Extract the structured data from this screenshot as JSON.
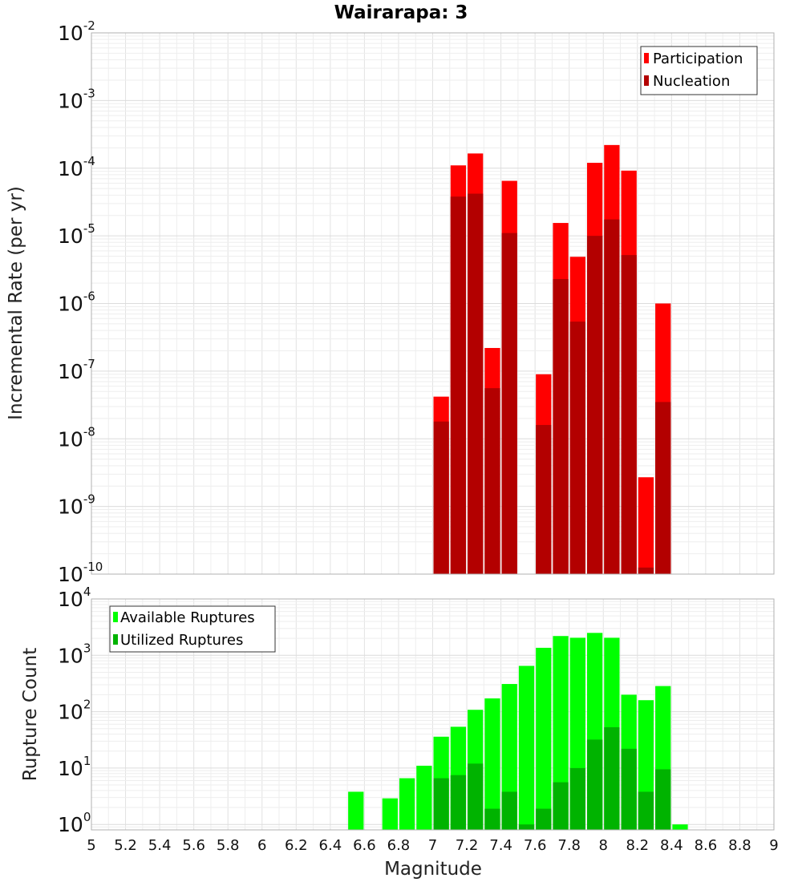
{
  "chart_data": [
    {
      "type": "bar",
      "title": "Wairarapa: 3",
      "xlabel": "",
      "ylabel": "Incremental Rate (per yr)",
      "xlim": [
        5,
        9
      ],
      "ylim": [
        1e-10,
        0.01
      ],
      "log_y": true,
      "bar_width": 0.1,
      "x": [
        7.05,
        7.15,
        7.25,
        7.35,
        7.45,
        7.65,
        7.75,
        7.85,
        7.95,
        8.05,
        8.15,
        8.25,
        8.35
      ],
      "legend": {
        "placement": "top-right"
      },
      "grid": true,
      "series": [
        {
          "name": "Participation",
          "color": "#ff0000",
          "values": [
            4.2e-08,
            0.00011,
            0.000165,
            2.2e-07,
            6.5e-05,
            9e-08,
            1.55e-05,
            4.9e-06,
            0.00012,
            0.00022,
            9.2e-05,
            2.7e-09,
            1e-06
          ]
        },
        {
          "name": "Nucleation",
          "color": "#b30000",
          "values": [
            1.8e-08,
            3.8e-05,
            4.2e-05,
            5.6e-08,
            1.1e-05,
            1.6e-08,
            2.3e-06,
            5.4e-07,
            1e-05,
            1.75e-05,
            5.2e-06,
            1.25e-10,
            3.5e-08
          ]
        }
      ]
    },
    {
      "type": "bar",
      "title": "",
      "xlabel": "Magnitude",
      "ylabel": "Rupture Count",
      "xlim": [
        5,
        9
      ],
      "ylim": [
        0.8,
        10000
      ],
      "log_y": true,
      "bar_width": 0.1,
      "x": [
        6.55,
        6.75,
        6.85,
        6.95,
        7.05,
        7.15,
        7.25,
        7.35,
        7.45,
        7.55,
        7.65,
        7.75,
        7.85,
        7.95,
        8.05,
        8.15,
        8.25,
        8.35,
        8.45
      ],
      "legend": {
        "placement": "top-left"
      },
      "grid": true,
      "series": [
        {
          "name": "Available Ruptures",
          "color": "#00ff00",
          "values": [
            3.8,
            2.9,
            6.6,
            11,
            36,
            54,
            108,
            172,
            310,
            650,
            1360,
            2200,
            2050,
            2500,
            2050,
            200,
            160,
            285,
            1
          ]
        },
        {
          "name": "Utilized Ruptures",
          "color": "#00b300",
          "values": [
            0,
            0,
            0,
            0,
            6.6,
            7.5,
            12,
            1.9,
            3.8,
            1,
            1.9,
            5.6,
            10,
            32,
            53,
            22,
            3.8,
            9.5,
            0
          ]
        }
      ]
    }
  ],
  "x_ticks": [
    "5",
    "5.2",
    "5.4",
    "5.6",
    "5.8",
    "6",
    "6.2",
    "6.4",
    "6.6",
    "6.8",
    "7",
    "7.2",
    "7.4",
    "7.6",
    "7.8",
    "8",
    "8.2",
    "8.4",
    "8.6",
    "8.8",
    "9"
  ],
  "y_ticks_top": [
    {
      "base": "10",
      "exp": "-10"
    },
    {
      "base": "10",
      "exp": "-9"
    },
    {
      "base": "10",
      "exp": "-8"
    },
    {
      "base": "10",
      "exp": "-7"
    },
    {
      "base": "10",
      "exp": "-6"
    },
    {
      "base": "10",
      "exp": "-5"
    },
    {
      "base": "10",
      "exp": "-4"
    },
    {
      "base": "10",
      "exp": "-3"
    },
    {
      "base": "10",
      "exp": "-2"
    }
  ],
  "y_ticks_bottom": [
    {
      "base": "10",
      "exp": "0"
    },
    {
      "base": "10",
      "exp": "1"
    },
    {
      "base": "10",
      "exp": "2"
    },
    {
      "base": "10",
      "exp": "3"
    },
    {
      "base": "10",
      "exp": "4"
    }
  ]
}
